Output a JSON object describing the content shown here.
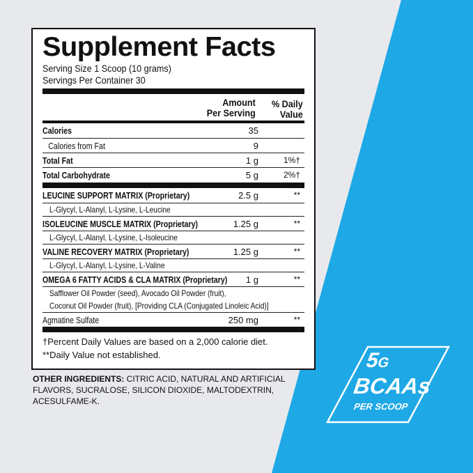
{
  "label": {
    "title": "Supplement Facts",
    "serving_size": "Serving Size 1 Scoop (10 grams)",
    "servings_per_container": "Servings Per Container 30",
    "col_amount": "Amount\nPer Serving",
    "col_dv": "% Daily\nValue",
    "basic_rows": [
      {
        "name": "Calories",
        "amount": "35",
        "dv": ""
      },
      {
        "name": "Calories from Fat",
        "amount": "9",
        "dv": ""
      },
      {
        "name": "Total Fat",
        "amount": "1 g",
        "dv": "1%†"
      },
      {
        "name": "Total Carbohydrate",
        "amount": "5 g",
        "dv": "2%†"
      }
    ],
    "blends": [
      {
        "name": "LEUCINE SUPPORT MATRIX (Proprietary)",
        "amount": "2.5 g",
        "dv": "**",
        "sub": "L-Glycyl, L-Alanyl, L-Lysine, L-Leucine"
      },
      {
        "name": "ISOLEUCINE MUSCLE MATRIX (Proprietary)",
        "amount": "1.25 g",
        "dv": "**",
        "sub": "L-Glycyl, L-Alanyl, L-Lysine, L-Isoleucine"
      },
      {
        "name": "VALINE RECOVERY MATRIX (Proprietary)",
        "amount": "1.25 g",
        "dv": "**",
        "sub": "L-Glycyl, L-Alanyl, L-Lysine, L-Valine"
      },
      {
        "name": "OMEGA 6 FATTY ACIDS  & CLA MATRIX (Proprietary)",
        "amount": "1 g",
        "dv": "**",
        "sub": "Safflower Oil Powder (seed), Avocado Oil Powder (fruit),\nCoconut Oil Powder (fruit), [Providing CLA (Conjugated Linoleic Acid)]"
      }
    ],
    "agmatine": {
      "name": "Agmatine Sulfate",
      "amount": "250 mg",
      "dv": "**"
    },
    "footnote1": "†Percent Daily Values are based on a 2,000 calorie diet.",
    "footnote2": "**Daily Value not established."
  },
  "other_ingredients": {
    "label": "OTHER INGREDIENTS:",
    "text": " CITRIC ACID, NATURAL AND ARTIFICIAL FLAVORS, SUCRALOSE, SILICON DIOXIDE, MALTODEXTRIN, ACESULFAME-K."
  },
  "badge": {
    "amount": "5",
    "unit": "G",
    "name": "BCAAs",
    "per": "PER SCOOP"
  },
  "colors": {
    "background": "#e8e9ec",
    "blue": "#1fa8e6",
    "ink": "#111111"
  }
}
